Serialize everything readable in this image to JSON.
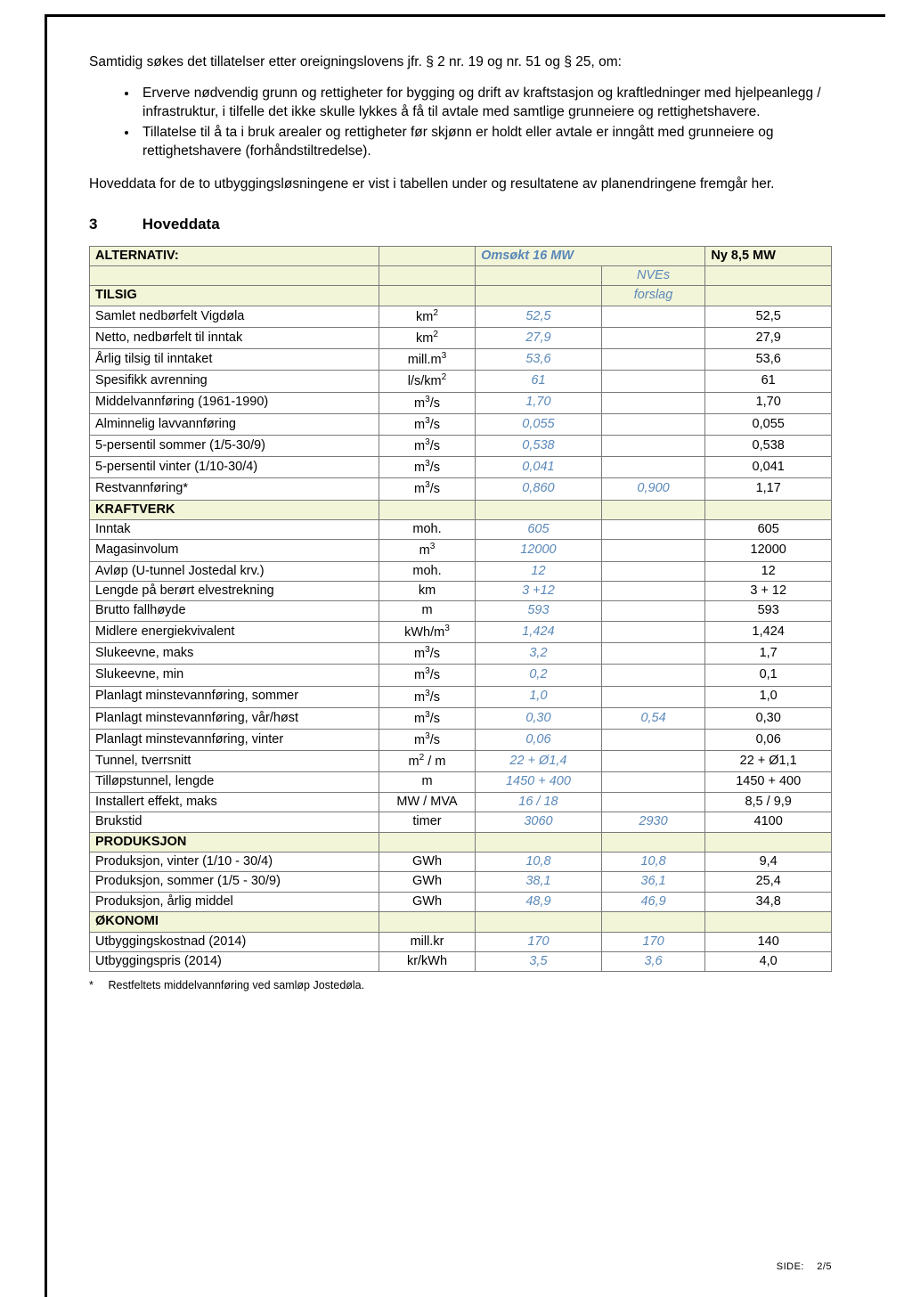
{
  "intro_line": "Samtidig søkes det tillatelser etter oreigningslovens jfr. § 2 nr. 19 og nr. 51 og § 25, om:",
  "bullets": [
    "Erverve nødvendig grunn og rettigheter for bygging og drift av kraftstasjon og kraftledninger med hjelpeanlegg / infrastruktur, i tilfelle det ikke skulle lykkes å få til avtale med samtlige grunneiere og rettighetshavere.",
    "Tillatelse til å ta i bruk arealer og rettigheter før skjønn er holdt eller avtale er inngått med grunneiere og rettighetshavere (forhåndstiltredelse)."
  ],
  "para2": "Hoveddata for de to utbyggingsløsningene er vist i tabellen under og resultatene av planendringene fremgår her.",
  "section_num": "3",
  "section_title": "Hoveddata",
  "table": {
    "header": {
      "alt": "ALTERNATIV:",
      "omsokt": "Omsøkt 16 MW",
      "ny": "Ny 8,5 MW",
      "nves": "NVEs",
      "tilsig": "TILSIG",
      "forslag": "forslag"
    },
    "sections": [
      {
        "rows": [
          {
            "label": "Samlet nedbørfelt Vigdøla",
            "unit": "km²",
            "oms": "52,5",
            "nves": "",
            "ny": "52,5"
          },
          {
            "label": "Netto, nedbørfelt til inntak",
            "unit": "km²",
            "oms": "27,9",
            "nves": "",
            "ny": "27,9"
          },
          {
            "label": "Årlig tilsig til inntaket",
            "unit": "mill.m³",
            "oms": "53,6",
            "nves": "",
            "ny": "53,6"
          },
          {
            "label": "Spesifikk avrenning",
            "unit": "l/s/km²",
            "oms": "61",
            "nves": "",
            "ny": "61"
          },
          {
            "label": "Middelvannføring (1961-1990)",
            "unit": "m³/s",
            "oms": "1,70",
            "nves": "",
            "ny": "1,70"
          },
          {
            "label": "Alminnelig lavvannføring",
            "unit": "m³/s",
            "oms": "0,055",
            "nves": "",
            "ny": "0,055"
          },
          {
            "label": "5-persentil sommer (1/5-30/9)",
            "unit": "m³/s",
            "oms": "0,538",
            "nves": "",
            "ny": "0,538"
          },
          {
            "label": "5-persentil vinter (1/10-30/4)",
            "unit": "m³/s",
            "oms": "0,041",
            "nves": "",
            "ny": "0,041"
          },
          {
            "label": "Restvannføring*",
            "unit": "m³/s",
            "oms": "0,860",
            "nves": "0,900",
            "ny": "1,17"
          }
        ]
      },
      {
        "heading": "KRAFTVERK",
        "rows": [
          {
            "label": "Inntak",
            "unit": "moh.",
            "oms": "605",
            "nves": "",
            "ny": "605"
          },
          {
            "label": "Magasinvolum",
            "unit": "m³",
            "oms": "12000",
            "nves": "",
            "ny": "12000"
          },
          {
            "label": "Avløp (U-tunnel Jostedal krv.)",
            "unit": "moh.",
            "oms": "12",
            "nves": "",
            "ny": "12"
          },
          {
            "label": "Lengde på berørt elvestrekning",
            "unit": "km",
            "oms": "3 +12",
            "nves": "",
            "ny": "3 + 12"
          },
          {
            "label": "Brutto fallhøyde",
            "unit": "m",
            "oms": "593",
            "nves": "",
            "ny": "593"
          },
          {
            "label": "Midlere energiekvivalent",
            "unit": "kWh/m³",
            "oms": "1,424",
            "nves": "",
            "ny": "1,424"
          },
          {
            "label": "Slukeevne, maks",
            "unit": "m³/s",
            "oms": "3,2",
            "nves": "",
            "ny": "1,7"
          },
          {
            "label": "Slukeevne, min",
            "unit": "m³/s",
            "oms": "0,2",
            "nves": "",
            "ny": "0,1"
          },
          {
            "label": "Planlagt minstevannføring, sommer",
            "unit": "m³/s",
            "oms": "1,0",
            "nves": "",
            "ny": "1,0"
          },
          {
            "label": "Planlagt minstevannføring, vår/høst",
            "unit": "m³/s",
            "oms": "0,30",
            "nves": "0,54",
            "ny": "0,30"
          },
          {
            "label": "Planlagt minstevannføring, vinter",
            "unit": "m³/s",
            "oms": "0,06",
            "nves": "",
            "ny": "0,06"
          },
          {
            "label": "Tunnel, tverrsnitt",
            "unit": "m² / m",
            "oms": "22 + Ø1,4",
            "nves": "",
            "ny": "22 + Ø1,1"
          },
          {
            "label": "Tilløpstunnel, lengde",
            "unit": "m",
            "oms": "1450 + 400",
            "nves": "",
            "ny": "1450 + 400"
          },
          {
            "label": "Installert effekt, maks",
            "unit": "MW / MVA",
            "oms": "16 / 18",
            "nves": "",
            "ny": "8,5 / 9,9"
          },
          {
            "label": "Brukstid",
            "unit": "timer",
            "oms": "3060",
            "nves": "2930",
            "ny": "4100"
          }
        ]
      },
      {
        "heading": "PRODUKSJON",
        "rows": [
          {
            "label": "Produksjon, vinter (1/10 - 30/4)",
            "unit": "GWh",
            "oms": "10,8",
            "nves": "10,8",
            "ny": "9,4"
          },
          {
            "label": "Produksjon, sommer (1/5 - 30/9)",
            "unit": "GWh",
            "oms": "38,1",
            "nves": "36,1",
            "ny": "25,4"
          },
          {
            "label": "Produksjon, årlig middel",
            "unit": "GWh",
            "oms": "48,9",
            "nves": "46,9",
            "ny": "34,8"
          }
        ]
      },
      {
        "heading": "ØKONOMI",
        "rows": [
          {
            "label": "Utbyggingskostnad (2014)",
            "unit": "mill.kr",
            "oms": "170",
            "nves": "170",
            "ny": "140"
          },
          {
            "label": "Utbyggingspris (2014)",
            "unit": "kr/kWh",
            "oms": "3,5",
            "nves": "3,6",
            "ny": "4,0"
          }
        ]
      }
    ]
  },
  "footnote_marker": "*",
  "footnote": "Restfeltets middelvannføring ved samløp Jostedøla.",
  "pagefoot_label": "SIDE:",
  "pagefoot_num": "2/5",
  "colors": {
    "header_bg": "#f3f5d9",
    "italic_color": "#5a88b8",
    "border": "#7a7a7a"
  }
}
